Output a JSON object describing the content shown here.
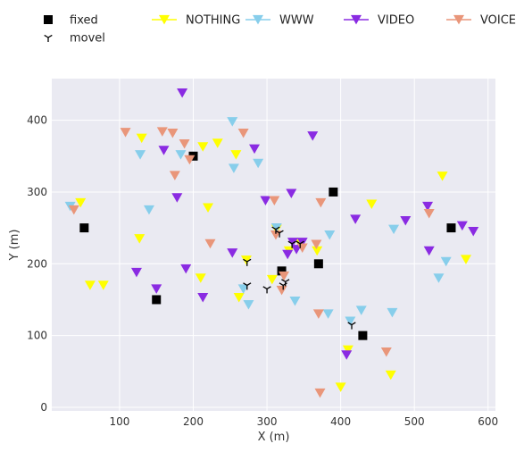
{
  "chart_data": {
    "type": "scatter",
    "xlabel": "X (m)",
    "ylabel": "Y (m)",
    "xlim": [
      8,
      610
    ],
    "ylim": [
      -5,
      458
    ],
    "xticks": [
      100,
      200,
      300,
      400,
      500,
      600
    ],
    "yticks": [
      0,
      100,
      200,
      300,
      400
    ],
    "grid": true,
    "legend_position": "top",
    "series": [
      {
        "name": "fixed",
        "marker": "square",
        "color": "#000000",
        "points": [
          [
            52,
            250
          ],
          [
            150,
            150
          ],
          [
            200,
            350
          ],
          [
            320,
            190
          ],
          [
            370,
            200
          ],
          [
            390,
            300
          ],
          [
            430,
            100
          ],
          [
            550,
            250
          ]
        ]
      },
      {
        "name": "NOTHING",
        "marker": "triangle-down-line",
        "color": "#ffff00",
        "points": [
          [
            47,
            285
          ],
          [
            60,
            170
          ],
          [
            78,
            170
          ],
          [
            127,
            235
          ],
          [
            130,
            375
          ],
          [
            210,
            180
          ],
          [
            213,
            363
          ],
          [
            220,
            278
          ],
          [
            233,
            368
          ],
          [
            258,
            352
          ],
          [
            262,
            153
          ],
          [
            272,
            205
          ],
          [
            307,
            178
          ],
          [
            313,
            248
          ],
          [
            330,
            218
          ],
          [
            345,
            228
          ],
          [
            368,
            218
          ],
          [
            400,
            28
          ],
          [
            410,
            80
          ],
          [
            442,
            283
          ],
          [
            468,
            45
          ],
          [
            538,
            322
          ],
          [
            570,
            206
          ]
        ]
      },
      {
        "name": "WWW",
        "marker": "triangle-down-line",
        "color": "#87ceeb",
        "points": [
          [
            33,
            280
          ],
          [
            128,
            352
          ],
          [
            140,
            275
          ],
          [
            183,
            352
          ],
          [
            253,
            398
          ],
          [
            255,
            333
          ],
          [
            268,
            165
          ],
          [
            275,
            143
          ],
          [
            288,
            340
          ],
          [
            313,
            250
          ],
          [
            338,
            148
          ],
          [
            383,
            130
          ],
          [
            385,
            240
          ],
          [
            413,
            120
          ],
          [
            428,
            135
          ],
          [
            470,
            132
          ],
          [
            472,
            248
          ],
          [
            533,
            180
          ],
          [
            543,
            203
          ]
        ]
      },
      {
        "name": "VIDEO",
        "marker": "triangle-down-line",
        "color": "#8a2be2",
        "points": [
          [
            123,
            188
          ],
          [
            150,
            165
          ],
          [
            160,
            358
          ],
          [
            178,
            292
          ],
          [
            185,
            438
          ],
          [
            190,
            193
          ],
          [
            213,
            153
          ],
          [
            253,
            215
          ],
          [
            283,
            360
          ],
          [
            298,
            288
          ],
          [
            328,
            213
          ],
          [
            333,
            298
          ],
          [
            335,
            230
          ],
          [
            340,
            220
          ],
          [
            348,
            230
          ],
          [
            362,
            378
          ],
          [
            408,
            73
          ],
          [
            420,
            262
          ],
          [
            488,
            260
          ],
          [
            518,
            280
          ],
          [
            520,
            218
          ],
          [
            565,
            253
          ],
          [
            580,
            245
          ]
        ]
      },
      {
        "name": "VOICE",
        "marker": "triangle-down-line",
        "color": "#e9967a",
        "points": [
          [
            38,
            275
          ],
          [
            108,
            383
          ],
          [
            158,
            384
          ],
          [
            172,
            382
          ],
          [
            175,
            323
          ],
          [
            188,
            367
          ],
          [
            195,
            345
          ],
          [
            223,
            228
          ],
          [
            268,
            382
          ],
          [
            310,
            288
          ],
          [
            312,
            240
          ],
          [
            320,
            163
          ],
          [
            323,
            183
          ],
          [
            348,
            222
          ],
          [
            367,
            227
          ],
          [
            370,
            130
          ],
          [
            372,
            20
          ],
          [
            373,
            285
          ],
          [
            462,
            77
          ],
          [
            520,
            270
          ]
        ]
      },
      {
        "name": "movel",
        "marker": "tri-down",
        "color": "#000000",
        "points": [
          [
            273,
            203
          ],
          [
            273,
            170
          ],
          [
            300,
            165
          ],
          [
            312,
            248
          ],
          [
            317,
            243
          ],
          [
            322,
            170
          ],
          [
            325,
            175
          ],
          [
            334,
            228
          ],
          [
            345,
            228
          ],
          [
            415,
            115
          ]
        ]
      }
    ]
  }
}
